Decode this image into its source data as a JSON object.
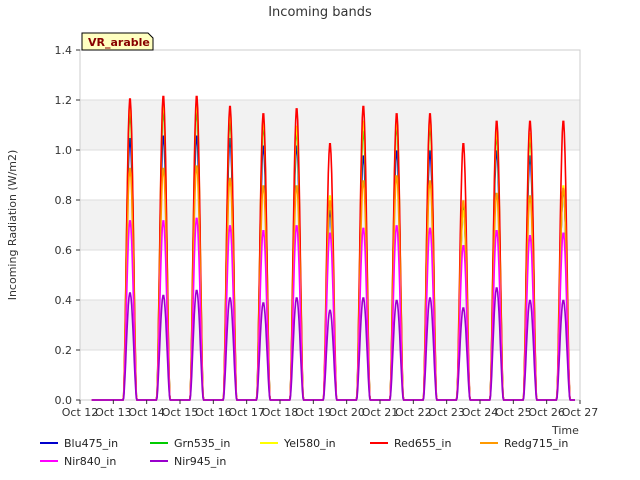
{
  "chart_data": {
    "type": "line",
    "title": "Incoming bands",
    "xlabel": "Time",
    "ylabel": "Incoming Radiation (W/m2)",
    "site_label": "VR_arable",
    "ylim": [
      0,
      1.4
    ],
    "yticks": [
      "0.0",
      "0.2",
      "0.4",
      "0.6",
      "0.8",
      "1.0",
      "1.2",
      "1.4"
    ],
    "xlim": [
      12,
      27
    ],
    "xticks": [
      "Oct 12",
      "Oct 13",
      "Oct 14",
      "Oct 15",
      "Oct 16",
      "Oct 17",
      "Oct 18",
      "Oct 19",
      "Oct 20",
      "Oct 21",
      "Oct 22",
      "Oct 23",
      "Oct 24",
      "Oct 25",
      "Oct 26",
      "Oct 27"
    ],
    "background_bands": true,
    "legend_position": "bottom",
    "days": [
      "Oct 13",
      "Oct 14",
      "Oct 15",
      "Oct 16",
      "Oct 17",
      "Oct 18",
      "Oct 19",
      "Oct 20",
      "Oct 21",
      "Oct 22",
      "Oct 23",
      "Oct 24",
      "Oct 25",
      "Oct 26"
    ],
    "series": [
      {
        "name": "Blu475_in",
        "color": "#0000cc",
        "daily_peak": [
          1.05,
          1.06,
          1.06,
          1.05,
          1.02,
          1.02,
          0.76,
          0.98,
          1.0,
          1.0,
          0.77,
          1.0,
          0.98,
          0.85
        ]
      },
      {
        "name": "Grn535_in",
        "color": "#00cc00",
        "daily_peak": [
          1.15,
          1.16,
          1.16,
          1.12,
          1.1,
          1.08,
          0.8,
          1.08,
          1.1,
          1.1,
          0.78,
          1.06,
          1.05,
          0.85
        ]
      },
      {
        "name": "Yel580_in",
        "color": "#ffff00",
        "daily_peak": [
          1.18,
          1.19,
          1.19,
          1.15,
          1.12,
          1.1,
          0.82,
          1.12,
          1.12,
          1.12,
          0.76,
          1.08,
          1.07,
          0.86
        ]
      },
      {
        "name": "Red655_in",
        "color": "#ff0000",
        "daily_peak": [
          1.21,
          1.22,
          1.22,
          1.18,
          1.15,
          1.17,
          1.03,
          1.18,
          1.15,
          1.15,
          1.03,
          1.12,
          1.12,
          1.12
        ]
      },
      {
        "name": "Redg715_in",
        "color": "#ff9900",
        "daily_peak": [
          0.93,
          0.93,
          0.94,
          0.89,
          0.86,
          0.86,
          0.8,
          0.88,
          0.9,
          0.88,
          0.8,
          0.83,
          0.82,
          0.85
        ]
      },
      {
        "name": "Nir840_in",
        "color": "#ff00ff",
        "daily_peak": [
          0.72,
          0.72,
          0.73,
          0.7,
          0.68,
          0.7,
          0.67,
          0.69,
          0.7,
          0.69,
          0.62,
          0.68,
          0.66,
          0.67
        ]
      },
      {
        "name": "Nir945_in",
        "color": "#9900cc",
        "daily_peak": [
          0.43,
          0.42,
          0.44,
          0.41,
          0.39,
          0.41,
          0.36,
          0.41,
          0.4,
          0.41,
          0.37,
          0.45,
          0.4,
          0.4
        ]
      }
    ]
  }
}
